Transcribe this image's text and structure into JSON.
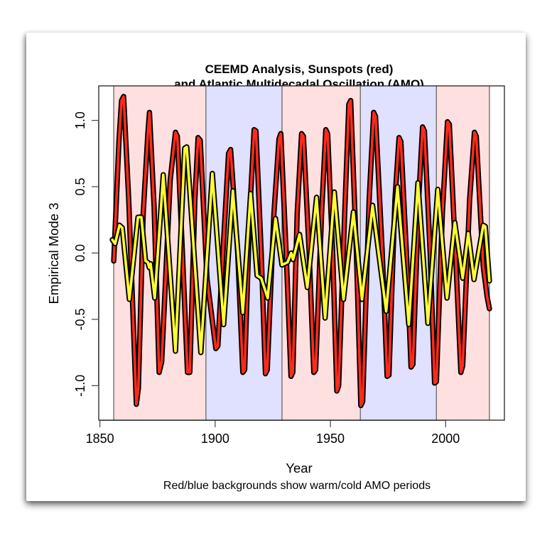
{
  "chart_data": {
    "type": "line",
    "title": [
      "CEEMD Analysis, Sunspots (red)",
      "and Atlantic Multidecadal Oscillation (AMO)"
    ],
    "xlabel": "Year",
    "ylabel": "Empirical Mode 3",
    "caption": "Red/blue backgrounds show warm/cold AMO periods",
    "xlim": [
      1849.5,
      2025.5
    ],
    "ylim": [
      -1.26,
      1.26
    ],
    "x_ticks": [
      1850,
      1900,
      1950,
      2000
    ],
    "x_tick_labels": [
      "1850",
      "1900",
      "1950",
      "2000"
    ],
    "y_ticks": [
      -1.0,
      -0.5,
      0.0,
      0.5,
      1.0
    ],
    "y_tick_labels": [
      "-1.0",
      "-0.5",
      "0.0",
      "0.5",
      "1.0"
    ],
    "grid": false,
    "bands": [
      {
        "start": 1856,
        "end": 1896,
        "phase": "warm",
        "color": "#ffe0e0"
      },
      {
        "start": 1896,
        "end": 1929,
        "phase": "cold",
        "color": "#e0e0ff"
      },
      {
        "start": 1929,
        "end": 1963,
        "phase": "warm",
        "color": "#ffe0e0"
      },
      {
        "start": 1963,
        "end": 1996,
        "phase": "cold",
        "color": "#e0e0ff"
      },
      {
        "start": 1996,
        "end": 2019,
        "phase": "warm",
        "color": "#ffe0e0"
      }
    ],
    "series": [
      {
        "name": "Sunspots",
        "color": "#ff2a1a",
        "x": [
          1856,
          1858.3,
          1859.4,
          1860.3,
          1862.5,
          1865.8,
          1866.7,
          1868.8,
          1870.8,
          1871.5,
          1873.5,
          1875.7,
          1876.8,
          1880.5,
          1882.8,
          1883.6,
          1885.8,
          1888,
          1889,
          1891.2,
          1892.6,
          1893.5,
          1896.5,
          1900.3,
          1901.2,
          1903.7,
          1905.8,
          1906.7,
          1909.8,
          1912,
          1912.8,
          1915,
          1916.9,
          1917.7,
          1920,
          1921.8,
          1922.6,
          1925.5,
          1927.7,
          1928.5,
          1930.8,
          1932.9,
          1933.7,
          1935.6,
          1937.5,
          1938.3,
          1940.8,
          1942.8,
          1943.6,
          1946.2,
          1948,
          1948.8,
          1951,
          1952.8,
          1953.6,
          1956.2,
          1958,
          1958.8,
          1961.3,
          1963.2,
          1964,
          1966.8,
          1968.8,
          1969.6,
          1972.5,
          1974.6,
          1975.4,
          1978,
          1979.8,
          1980.6,
          1983,
          1985,
          1985.8,
          1988.3,
          1990,
          1990.8,
          1993.3,
          1995.2,
          1996,
          1998.6,
          2000.8,
          2001.6,
          2004.3,
          2006.6,
          2007.4,
          2010.4,
          2012.5,
          2013.3,
          2016.3,
          2018,
          2019
        ],
        "values": [
          -0.06,
          0.85,
          1.15,
          1.18,
          0.4,
          -1.14,
          -1.02,
          0.3,
          0.9,
          1.06,
          0.35,
          -0.9,
          -0.82,
          0.55,
          0.91,
          0.88,
          0.0,
          -0.9,
          -0.9,
          0.4,
          0.87,
          0.85,
          -0.2,
          -0.72,
          -0.7,
          0.1,
          0.75,
          0.78,
          0.0,
          -0.9,
          -0.88,
          0.3,
          0.93,
          0.92,
          0.0,
          -0.91,
          -0.88,
          0.3,
          0.86,
          0.9,
          0.0,
          -0.93,
          -0.9,
          0.3,
          0.9,
          0.88,
          0.0,
          -0.9,
          -0.88,
          0.3,
          0.93,
          0.9,
          0.0,
          -1.04,
          -1.0,
          0.3,
          1.12,
          1.15,
          0.0,
          -1.15,
          -1.12,
          0.4,
          1.06,
          1.03,
          0.0,
          -0.93,
          -0.92,
          0.4,
          0.87,
          0.84,
          0.0,
          -0.86,
          -0.84,
          0.4,
          0.95,
          0.92,
          0.0,
          -0.98,
          -0.97,
          0.3,
          0.99,
          0.97,
          0.0,
          -0.9,
          -0.85,
          0.4,
          0.91,
          0.88,
          -0.1,
          -0.33,
          -0.42
        ]
      },
      {
        "name": "AMO",
        "color": "#ffff33",
        "x": [
          1855.4,
          1856.6,
          1858.5,
          1859.7,
          1862.8,
          1866.5,
          1868,
          1869.8,
          1870.8,
          1871.4,
          1872,
          1873.8,
          1877.5,
          1882.8,
          1886.8,
          1887.7,
          1893.8,
          1898.8,
          1903.7,
          1907.7,
          1912,
          1915.4,
          1918.2,
          1920,
          1922.8,
          1926.2,
          1929,
          1931.4,
          1933,
          1933.8,
          1936.6,
          1940,
          1944,
          1947.7,
          1951.7,
          1955.7,
          1960,
          1963.7,
          1968.3,
          1974.2,
          1979.1,
          1984,
          1988,
          1992.3,
          1996.6,
          2000.6,
          2004,
          2007.4,
          2009.8,
          2012.3,
          2016.3,
          2017.2,
          2019
        ],
        "values": [
          0.1,
          0.07,
          0.21,
          0.19,
          -0.35,
          0.27,
          0.27,
          -0.06,
          -0.07,
          -0.11,
          -0.08,
          -0.34,
          0.59,
          -0.74,
          0.79,
          0.8,
          -0.75,
          0.6,
          -0.54,
          0.47,
          -0.45,
          0.45,
          -0.17,
          -0.19,
          -0.34,
          0.26,
          -0.09,
          -0.07,
          0.0,
          -0.05,
          0.14,
          -0.26,
          0.42,
          -0.49,
          0.46,
          -0.35,
          0.31,
          -0.35,
          0.36,
          -0.44,
          0.5,
          -0.54,
          0.53,
          -0.53,
          0.48,
          -0.34,
          0.23,
          -0.19,
          0.15,
          -0.2,
          0.21,
          0.2,
          -0.21
        ]
      }
    ]
  }
}
